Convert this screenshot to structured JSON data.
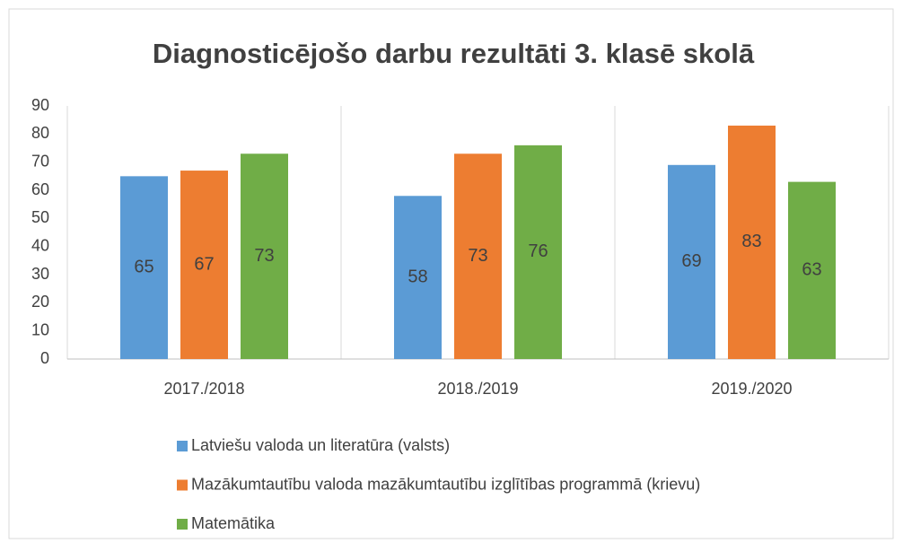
{
  "chart_data": {
    "type": "bar",
    "title": "Diagnosticējošo darbu rezultāti 3. klasē skolā",
    "categories": [
      "2017./2018",
      "2018./2019",
      "2019./2020"
    ],
    "series": [
      {
        "name": "Latviešu valoda un literatūra (valsts)",
        "color": "#5b9bd5",
        "values": [
          65,
          58,
          69
        ]
      },
      {
        "name": "Mazākumtautību valoda mazākumtautību izglītības programmā (krievu)",
        "color": "#ed7d31",
        "values": [
          67,
          73,
          83
        ]
      },
      {
        "name": "Matemātika",
        "color": "#70ad47",
        "values": [
          73,
          76,
          63
        ]
      }
    ],
    "ylim": [
      0,
      90
    ],
    "yticks": [
      0,
      10,
      20,
      30,
      40,
      50,
      60,
      70,
      80,
      90
    ],
    "grid": true,
    "legend": "bottom"
  }
}
